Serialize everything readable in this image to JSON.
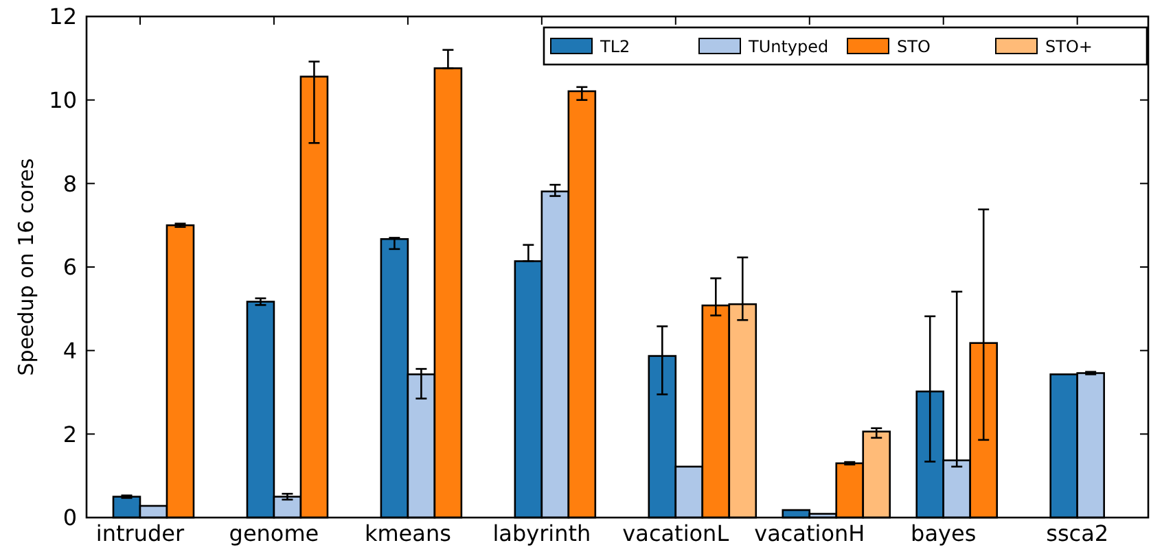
{
  "chart_data": {
    "type": "bar",
    "ylabel": "Speedup on 16 cores",
    "categories": [
      "intruder",
      "genome",
      "kmeans",
      "labyrinth",
      "vacationL",
      "vacationH",
      "bayes",
      "ssca2"
    ],
    "series": [
      {
        "name": "TL2",
        "color": "#1f77b4",
        "values": [
          0.5,
          5.17,
          6.67,
          6.14,
          3.87,
          0.18,
          3.02,
          3.43
        ],
        "errors": [
          0.03,
          0.08,
          [
            6.43,
            6.7
          ],
          [
            6.14,
            6.53
          ],
          [
            2.95,
            4.58
          ],
          null,
          [
            1.34,
            4.82
          ],
          null
        ]
      },
      {
        "name": "TUntyped",
        "color": "#aec7e8",
        "values": [
          0.28,
          0.5,
          3.43,
          7.81,
          1.22,
          0.09,
          1.37,
          3.46
        ],
        "errors": [
          null,
          0.07,
          [
            2.85,
            3.56
          ],
          [
            7.7,
            7.97
          ],
          null,
          null,
          [
            1.22,
            5.41
          ],
          0.03
        ]
      },
      {
        "name": "STO",
        "color": "#ff7f0e",
        "values": [
          7.0,
          10.56,
          10.76,
          10.21,
          5.08,
          1.3,
          4.18,
          0
        ],
        "errors": [
          0.04,
          [
            8.97,
            10.92
          ],
          [
            10.76,
            11.2
          ],
          [
            10.0,
            10.31
          ],
          [
            4.84,
            5.73
          ],
          0.03,
          [
            1.86,
            7.38
          ],
          null
        ]
      },
      {
        "name": "STO+",
        "color": "#ffbb78",
        "values": [
          0,
          0,
          0,
          0,
          5.11,
          2.06,
          0,
          0
        ],
        "errors": [
          null,
          null,
          null,
          null,
          [
            4.73,
            6.23
          ],
          [
            1.91,
            2.14
          ],
          null,
          null
        ]
      }
    ],
    "ylim": [
      0,
      12
    ],
    "yticks": [
      0,
      2,
      4,
      6,
      8,
      10,
      12
    ],
    "legend": "top right",
    "grid": false
  }
}
